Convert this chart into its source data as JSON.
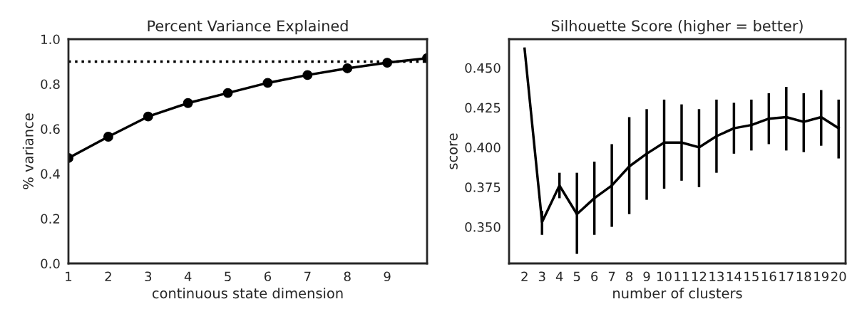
{
  "chart_data": [
    {
      "type": "line",
      "title": "Percent Variance Explained",
      "xlabel": "continuous state dimension",
      "ylabel": "% variance",
      "x": [
        1,
        2,
        3,
        4,
        5,
        6,
        7,
        8,
        9,
        10
      ],
      "series": [
        {
          "color": "#000000",
          "values": [
            0.47,
            0.565,
            0.655,
            0.715,
            0.76,
            0.805,
            0.84,
            0.87,
            0.895,
            0.915
          ]
        }
      ],
      "marker": "circle",
      "line_style": "solid",
      "xlim": [
        1,
        10
      ],
      "xticks": [
        1,
        2,
        3,
        4,
        5,
        6,
        7,
        8,
        9
      ],
      "ylim": [
        0,
        1
      ],
      "yticks": [
        {
          "value": 0,
          "label": "0.0"
        },
        0.2,
        0.4,
        0.6,
        0.8,
        {
          "value": 1,
          "label": "1.0"
        }
      ],
      "ref_lines": [
        {
          "axis": "y",
          "value": 0.9,
          "color": "#000000",
          "line_style": "dotted"
        }
      ],
      "grid": false,
      "legend": false
    },
    {
      "type": "line",
      "title": "Silhouette Score (higher = better)",
      "xlabel": "number of clusters",
      "ylabel": "score",
      "categories": [
        "2",
        "3",
        "4",
        "5",
        "6",
        "7",
        "8",
        "9",
        "10",
        "11",
        "12",
        "13",
        "14",
        "15",
        "16",
        "17",
        "18",
        "19",
        "20"
      ],
      "series": [
        {
          "color": "#000000",
          "values": [
            0.462,
            0.353,
            0.376,
            0.358,
            0.368,
            0.376,
            0.388,
            0.396,
            0.403,
            0.403,
            0.4,
            0.407,
            0.412,
            0.414,
            0.418,
            0.419,
            0.416,
            0.419,
            0.412
          ],
          "errors": [
            null,
            [
              0.345,
              0.36
            ],
            [
              0.368,
              0.384
            ],
            [
              0.333,
              0.384
            ],
            [
              0.345,
              0.391
            ],
            [
              0.35,
              0.402
            ],
            [
              0.358,
              0.419
            ],
            [
              0.367,
              0.424
            ],
            [
              0.374,
              0.43
            ],
            [
              0.379,
              0.427
            ],
            [
              0.375,
              0.424
            ],
            [
              0.384,
              0.43
            ],
            [
              0.396,
              0.428
            ],
            [
              0.398,
              0.43
            ],
            [
              0.402,
              0.434
            ],
            [
              0.398,
              0.438
            ],
            [
              0.397,
              0.434
            ],
            [
              0.401,
              0.436
            ],
            [
              0.393,
              0.43
            ]
          ]
        }
      ],
      "marker": "none",
      "line_style": "solid",
      "ylim": [
        0.327,
        0.468
      ],
      "yticks": [
        {
          "value": 0.35,
          "label": "0.350"
        },
        0.375,
        {
          "value": 0.4,
          "label": "0.400"
        },
        0.425,
        {
          "value": 0.45,
          "label": "0.450"
        }
      ],
      "grid": false,
      "legend": false
    }
  ]
}
